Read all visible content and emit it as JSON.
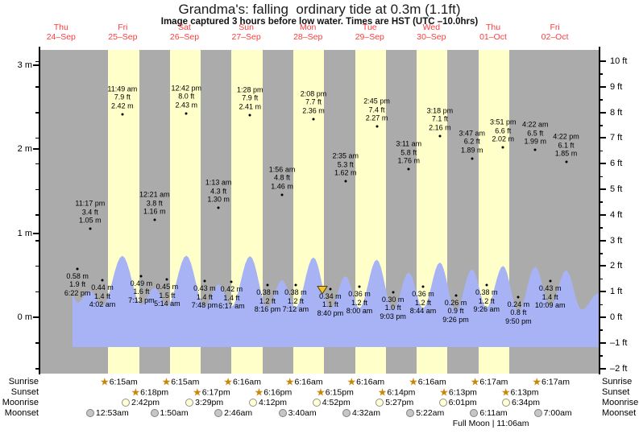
{
  "title": "Grandma's: falling  ordinary tide at 0.3m (1.1ft)",
  "subtitle": "Image captured 3 hours before low water. Times are HST (UTC –10.0hrs)",
  "colors": {
    "band_night": "#ababab",
    "band_day": "#ffffc9",
    "water": "#a7b3f4",
    "day_label_red": "#ff3b3b",
    "text": "#000000",
    "star_gold": "#c7880a",
    "moonrise_fill": "#ffffd6",
    "moonrise_border": "#909090",
    "moonset_fill": "#c6c6c2",
    "moonset_border": "#808080",
    "capture_marker_fill": "#f2c52d",
    "capture_marker_stroke": "#4a3c00"
  },
  "chart_data": {
    "type": "area",
    "title": "Grandma's: falling  ordinary tide at 0.3m (1.1ft)",
    "days": [
      {
        "dow": "Thu",
        "date": "24–Sep"
      },
      {
        "dow": "Fri",
        "date": "25–Sep"
      },
      {
        "dow": "Sat",
        "date": "26–Sep"
      },
      {
        "dow": "Sun",
        "date": "27–Sep"
      },
      {
        "dow": "Mon",
        "date": "28–Sep"
      },
      {
        "dow": "Tue",
        "date": "29–Sep"
      },
      {
        "dow": "Wed",
        "date": "30–Sep"
      },
      {
        "dow": "Thu",
        "date": "01–Oct"
      },
      {
        "dow": "Fri",
        "date": "02–Oct"
      }
    ],
    "y_axis_left": {
      "unit": "m",
      "major_ticks": [
        0,
        1,
        2,
        3
      ],
      "range_ft": [
        -2,
        10
      ]
    },
    "y_axis_right": {
      "unit": "ft",
      "major_ticks": [
        -2,
        -1,
        0,
        1,
        2,
        3,
        4,
        5,
        6,
        7,
        8,
        9,
        10
      ]
    },
    "tide_extremes": [
      {
        "day": 0,
        "time": "6:22 pm",
        "m": "0.58",
        "ft": "1.9",
        "kind": "low"
      },
      {
        "day": 0,
        "time": "11:17 pm",
        "m": "1.05",
        "ft": "3.4",
        "kind": "high"
      },
      {
        "day": 1,
        "time": "4:02 am",
        "m": "0.44",
        "ft": "1.4",
        "kind": "low"
      },
      {
        "day": 1,
        "time": "11:49 am",
        "m": "2.42",
        "ft": "7.9",
        "kind": "high"
      },
      {
        "day": 1,
        "time": "7:13 pm",
        "m": "0.49",
        "ft": "1.6",
        "kind": "low"
      },
      {
        "day": 2,
        "time": "12:21 am",
        "m": "1.16",
        "ft": "3.8",
        "kind": "high"
      },
      {
        "day": 2,
        "time": "5:14 am",
        "m": "0.45",
        "ft": "1.5",
        "kind": "low"
      },
      {
        "day": 2,
        "time": "12:42 pm",
        "m": "2.43",
        "ft": "8.0",
        "kind": "high"
      },
      {
        "day": 2,
        "time": "7:48 pm",
        "m": "0.43",
        "ft": "1.4",
        "kind": "low"
      },
      {
        "day": 3,
        "time": "1:13 am",
        "m": "1.30",
        "ft": "4.3",
        "kind": "high"
      },
      {
        "day": 3,
        "time": "6:17 am",
        "m": "0.42",
        "ft": "1.4",
        "kind": "low"
      },
      {
        "day": 3,
        "time": "1:28 pm",
        "m": "2.41",
        "ft": "7.9",
        "kind": "high"
      },
      {
        "day": 3,
        "time": "8:16 pm",
        "m": "0.38",
        "ft": "1.2",
        "kind": "low"
      },
      {
        "day": 4,
        "time": "1:56 am",
        "m": "1.46",
        "ft": "4.8",
        "kind": "high"
      },
      {
        "day": 4,
        "time": "7:12 am",
        "m": "0.38",
        "ft": "1.2",
        "kind": "low"
      },
      {
        "day": 4,
        "time": "2:08 pm",
        "m": "2.36",
        "ft": "7.7",
        "kind": "high"
      },
      {
        "day": 4,
        "time": "8:40 pm",
        "m": "0.34",
        "ft": "1.1",
        "kind": "low"
      },
      {
        "day": 5,
        "time": "2:35 am",
        "m": "1.62",
        "ft": "5.3",
        "kind": "high"
      },
      {
        "day": 5,
        "time": "8:00 am",
        "m": "0.36",
        "ft": "1.2",
        "kind": "low"
      },
      {
        "day": 5,
        "time": "2:45 pm",
        "m": "2.27",
        "ft": "7.4",
        "kind": "high"
      },
      {
        "day": 5,
        "time": "9:03 pm",
        "m": "0.30",
        "ft": "1.0",
        "kind": "low"
      },
      {
        "day": 6,
        "time": "3:11 am",
        "m": "1.76",
        "ft": "5.8",
        "kind": "high"
      },
      {
        "day": 6,
        "time": "8:44 am",
        "m": "0.36",
        "ft": "1.2",
        "kind": "low"
      },
      {
        "day": 6,
        "time": "3:18 pm",
        "m": "2.16",
        "ft": "7.1",
        "kind": "high"
      },
      {
        "day": 6,
        "time": "9:26 pm",
        "m": "0.26",
        "ft": "0.9",
        "kind": "low"
      },
      {
        "day": 7,
        "time": "3:47 am",
        "m": "1.89",
        "ft": "6.2",
        "kind": "high"
      },
      {
        "day": 7,
        "time": "9:26 am",
        "m": "0.38",
        "ft": "1.2",
        "kind": "low"
      },
      {
        "day": 7,
        "time": "3:51 pm",
        "m": "2.02",
        "ft": "6.6",
        "kind": "high"
      },
      {
        "day": 7,
        "time": "9:50 pm",
        "m": "0.24",
        "ft": "0.8",
        "kind": "low"
      },
      {
        "day": 8,
        "time": "4:22 am",
        "m": "1.99",
        "ft": "6.5",
        "kind": "high"
      },
      {
        "day": 8,
        "time": "10:09 am",
        "m": "0.43",
        "ft": "1.4",
        "kind": "low"
      },
      {
        "day": 8,
        "time": "4:22 pm",
        "m": "1.85",
        "ft": "6.1",
        "kind": "high"
      }
    ],
    "capture_marker": {
      "day": 4,
      "time": "5:40 pm"
    }
  },
  "astro": {
    "rows": [
      {
        "name": "sunrise",
        "label": "Sunrise",
        "icon": "star",
        "events": [
          {
            "day": 1,
            "time": "6:15am"
          },
          {
            "day": 2,
            "time": "6:15am"
          },
          {
            "day": 3,
            "time": "6:16am"
          },
          {
            "day": 4,
            "time": "6:16am"
          },
          {
            "day": 5,
            "time": "6:16am"
          },
          {
            "day": 6,
            "time": "6:16am"
          },
          {
            "day": 7,
            "time": "6:17am"
          },
          {
            "day": 8,
            "time": "6:17am"
          }
        ]
      },
      {
        "name": "sunset",
        "label": "Sunset",
        "icon": "star",
        "events": [
          {
            "day": 1,
            "time": "6:18pm"
          },
          {
            "day": 2,
            "time": "6:17pm"
          },
          {
            "day": 3,
            "time": "6:16pm"
          },
          {
            "day": 4,
            "time": "6:15pm"
          },
          {
            "day": 5,
            "time": "6:14pm"
          },
          {
            "day": 6,
            "time": "6:13pm"
          },
          {
            "day": 7,
            "time": "6:13pm"
          }
        ]
      },
      {
        "name": "moonrise",
        "label": "Moonrise",
        "icon": "moon-light",
        "events": [
          {
            "day": 1,
            "time": "2:42pm"
          },
          {
            "day": 2,
            "time": "3:29pm"
          },
          {
            "day": 3,
            "time": "4:12pm"
          },
          {
            "day": 4,
            "time": "4:52pm"
          },
          {
            "day": 5,
            "time": "5:27pm"
          },
          {
            "day": 6,
            "time": "6:01pm"
          },
          {
            "day": 7,
            "time": "6:34pm"
          }
        ]
      },
      {
        "name": "moonset",
        "label": "Moonset",
        "icon": "moon-gray",
        "events": [
          {
            "day": 1,
            "time": "12:53am"
          },
          {
            "day": 2,
            "time": "1:50am"
          },
          {
            "day": 3,
            "time": "2:46am"
          },
          {
            "day": 4,
            "time": "3:40am"
          },
          {
            "day": 5,
            "time": "4:32am"
          },
          {
            "day": 6,
            "time": "5:22am"
          },
          {
            "day": 7,
            "time": "6:11am"
          },
          {
            "day": 8,
            "time": "7:00am"
          }
        ]
      }
    ],
    "full_moon": {
      "text": "Full Moon | 11:06am",
      "day": 7,
      "time": "11:06 am"
    }
  }
}
